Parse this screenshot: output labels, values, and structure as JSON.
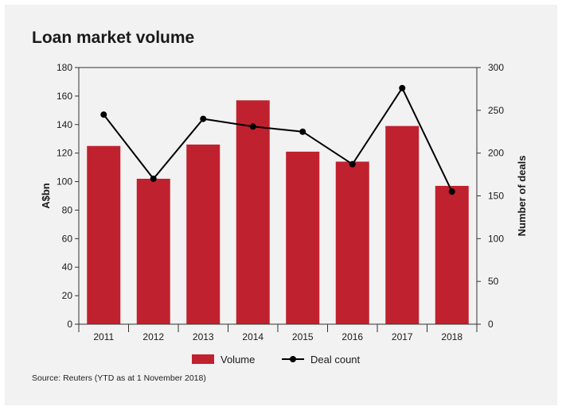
{
  "title": "Loan market volume",
  "source": "Source: Reuters (YTD as at 1 November 2018)",
  "chart_data": {
    "type": "bar",
    "categories": [
      "2011",
      "2012",
      "2013",
      "2014",
      "2015",
      "2016",
      "2017",
      "2018"
    ],
    "series": [
      {
        "name": "Volume",
        "type": "bar",
        "axis": "left",
        "color": "#c0212e",
        "values": [
          125,
          102,
          126,
          157,
          121,
          114,
          139,
          97
        ]
      },
      {
        "name": "Deal count",
        "type": "line",
        "axis": "right",
        "color": "#000000",
        "values": [
          245,
          170,
          240,
          231,
          225,
          187,
          276,
          155
        ]
      }
    ],
    "ylabel": "A$bn",
    "y2label": "Number of deals",
    "ylim": [
      0,
      180
    ],
    "y2lim": [
      0,
      300
    ],
    "yticks": [
      "0",
      "20",
      "40",
      "60",
      "80",
      "100",
      "120",
      "140",
      "160",
      "180"
    ],
    "y2ticks": [
      "0",
      "50",
      "100",
      "150",
      "200",
      "250",
      "300"
    ],
    "grid": false,
    "legend_position": "bottom",
    "legend": [
      {
        "label": "Volume",
        "symbol": "bar-swatch"
      },
      {
        "label": "Deal count",
        "symbol": "line-marker"
      }
    ]
  }
}
